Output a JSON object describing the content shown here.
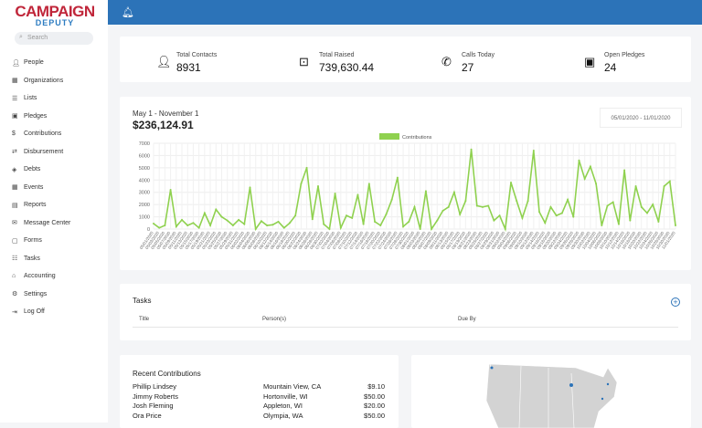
{
  "brand": {
    "line1": "CAMPAIGN",
    "line2": "DEPUTY"
  },
  "sidebar": {
    "search_placeholder": "Search",
    "items": [
      {
        "label": "People",
        "icon": "user-icon"
      },
      {
        "label": "Organizations",
        "icon": "building-icon"
      },
      {
        "label": "Lists",
        "icon": "list-icon"
      },
      {
        "label": "Pledges",
        "icon": "gift-icon"
      },
      {
        "label": "Contributions",
        "icon": "dollar-icon"
      },
      {
        "label": "Disbursement",
        "icon": "exchange-icon"
      },
      {
        "label": "Debts",
        "icon": "money-icon"
      },
      {
        "label": "Events",
        "icon": "calendar-icon"
      },
      {
        "label": "Reports",
        "icon": "file-icon"
      },
      {
        "label": "Message Center",
        "icon": "envelope-icon"
      },
      {
        "label": "Forms",
        "icon": "form-icon"
      },
      {
        "label": "Tasks",
        "icon": "tasks-icon"
      },
      {
        "label": "Accounting",
        "icon": "bank-icon"
      },
      {
        "label": "Settings",
        "icon": "gear-icon"
      },
      {
        "label": "Log Off",
        "icon": "sign-out-icon"
      }
    ]
  },
  "stats": [
    {
      "label": "Total Contacts",
      "value": "8931",
      "icon": "user-icon"
    },
    {
      "label": "Total Raised",
      "value": "739,630.44",
      "icon": "dollar-box-icon"
    },
    {
      "label": "Calls Today",
      "value": "27",
      "icon": "phone-icon"
    },
    {
      "label": "Open Pledges",
      "value": "24",
      "icon": "gift-icon"
    }
  ],
  "contributions_panel": {
    "range_label": "May 1 - November 1",
    "total": "$236,124.91",
    "date_range": "05/01/2020 - 11/01/2020"
  },
  "chart_data": {
    "type": "line",
    "legend": "Contributions",
    "legend_position": "top",
    "color": "#8fd14f",
    "ylim": [
      0,
      7000
    ],
    "yticks": [
      0,
      1000,
      2000,
      3000,
      4000,
      5000,
      6000,
      7000
    ],
    "grid": true,
    "x": [
      "05/01/2020",
      "05/03/2020",
      "05/05/2020",
      "05/07/2020",
      "05/09/2020",
      "05/11/2020",
      "05/13/2020",
      "05/15/2020",
      "05/17/2020",
      "05/19/2020",
      "05/21/2020",
      "05/23/2020",
      "05/25/2020",
      "05/27/2020",
      "05/29/2020",
      "05/31/2020",
      "06/02/2020",
      "06/04/2020",
      "06/06/2020",
      "06/08/2020",
      "06/10/2020",
      "06/12/2020",
      "06/14/2020",
      "06/16/2020",
      "06/18/2020",
      "06/20/2020",
      "06/22/2020",
      "06/24/2020",
      "06/26/2020",
      "06/28/2020",
      "06/30/2020",
      "07/02/2020",
      "07/04/2020",
      "07/06/2020",
      "07/08/2020",
      "07/10/2020",
      "07/12/2020",
      "07/14/2020",
      "07/16/2020",
      "07/18/2020",
      "07/20/2020",
      "07/22/2020",
      "07/24/2020",
      "07/26/2020",
      "07/28/2020",
      "07/30/2020",
      "08/01/2020",
      "08/03/2020",
      "08/05/2020",
      "08/07/2020",
      "08/09/2020",
      "08/11/2020",
      "08/13/2020",
      "08/15/2020",
      "08/17/2020",
      "08/19/2020",
      "08/21/2020",
      "08/23/2020",
      "08/25/2020",
      "08/27/2020",
      "08/29/2020",
      "08/31/2020",
      "09/02/2020",
      "09/04/2020",
      "09/06/2020",
      "09/08/2020",
      "09/10/2020",
      "09/12/2020",
      "09/14/2020",
      "09/16/2020",
      "09/18/2020",
      "09/20/2020",
      "09/22/2020",
      "09/24/2020",
      "09/26/2020",
      "09/28/2020",
      "09/30/2020",
      "10/02/2020",
      "10/04/2020",
      "10/06/2020",
      "10/08/2020",
      "10/10/2020",
      "10/12/2020",
      "10/14/2020",
      "10/16/2020",
      "10/18/2020",
      "10/20/2020",
      "10/22/2020",
      "10/24/2020",
      "10/26/2020",
      "10/28/2020",
      "10/30/2020",
      "11/01/2020"
    ],
    "values": [
      450,
      100,
      300,
      3200,
      200,
      750,
      300,
      500,
      100,
      1300,
      300,
      1600,
      1000,
      700,
      300,
      750,
      400,
      3400,
      0,
      650,
      300,
      350,
      600,
      100,
      500,
      1100,
      3700,
      5000,
      800,
      3500,
      400,
      0,
      2900,
      100,
      1100,
      900,
      2800,
      400,
      3700,
      600,
      300,
      1200,
      2400,
      4200,
      200,
      600,
      1800,
      0,
      3100,
      0,
      700,
      1500,
      1800,
      3000,
      1200,
      2300,
      6500,
      1900,
      1800,
      1900,
      700,
      1100,
      0,
      3800,
      2300,
      900,
      2300,
      6400,
      1400,
      500,
      1800,
      1100,
      1300,
      2400,
      1000,
      5600,
      4100,
      5100,
      3700,
      300,
      1900,
      2200,
      400,
      4800,
      700,
      3500,
      1800,
      1300,
      2000,
      600,
      3500,
      3900,
      300
    ]
  },
  "tasks": {
    "title": "Tasks",
    "columns": [
      "Title",
      "Person(s)",
      "Due By"
    ],
    "add_icon": "plus-circle-icon"
  },
  "recent": {
    "title": "Recent Contributions",
    "rows": [
      {
        "name": "Phillip Lindsey",
        "location": "Mountain View, CA",
        "amount": "$9.10"
      },
      {
        "name": "Jimmy Roberts",
        "location": "Hortonville, WI",
        "amount": "$50.00"
      },
      {
        "name": "Josh Fleming",
        "location": "Appleton, WI",
        "amount": "$20.00"
      },
      {
        "name": "Ora Price",
        "location": "Olympia, WA",
        "amount": "$50.00"
      }
    ]
  },
  "colors": {
    "topbar": "#2c73b8",
    "line": "#8fd14f",
    "brand_red": "#c0263a"
  }
}
